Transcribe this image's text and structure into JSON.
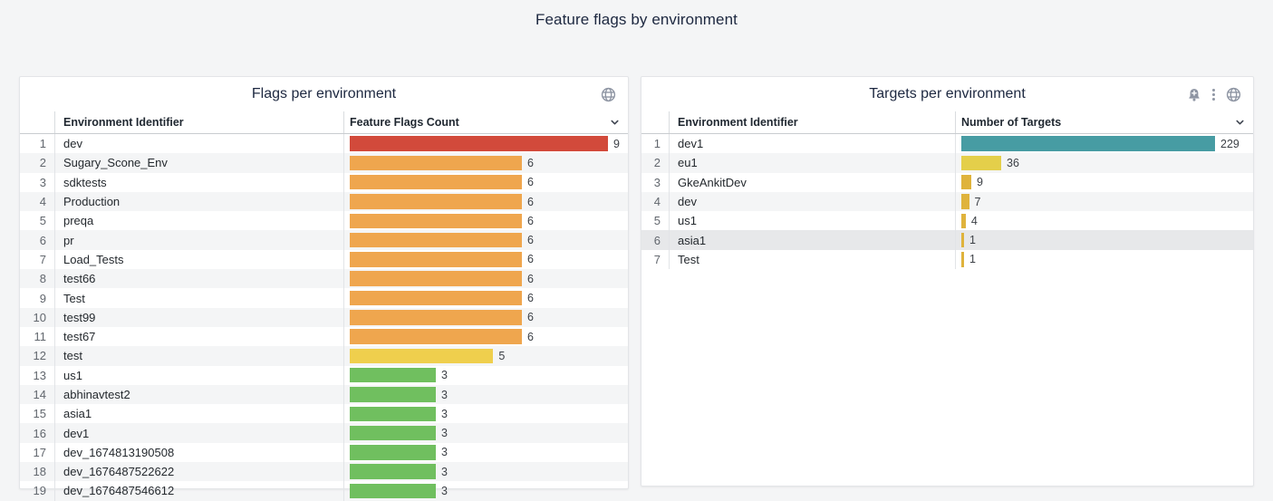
{
  "page": {
    "title": "Feature flags by environment",
    "background_color": "#f4f5f6"
  },
  "colors": {
    "red": "#d24a3b",
    "orange": "#efa64e",
    "yellow": "#efcf4d",
    "green": "#70bf5f",
    "teal": "#479ca3",
    "lime_yellow": "#e4cf4a",
    "gold": "#dfb33c",
    "icon_gray": "#8e95a3"
  },
  "panels": [
    {
      "title": "Flags per environment",
      "icons": [
        "globe-icon"
      ],
      "columns": [
        "Environment Identifier",
        "Feature Flags Count"
      ],
      "max": 9,
      "rows": [
        {
          "n": 1,
          "id": "dev",
          "value": 9,
          "color": "#d24a3b"
        },
        {
          "n": 2,
          "id": "Sugary_Scone_Env",
          "value": 6,
          "color": "#efa64e"
        },
        {
          "n": 3,
          "id": "sdktests",
          "value": 6,
          "color": "#efa64e"
        },
        {
          "n": 4,
          "id": "Production",
          "value": 6,
          "color": "#efa64e"
        },
        {
          "n": 5,
          "id": "preqa",
          "value": 6,
          "color": "#efa64e"
        },
        {
          "n": 6,
          "id": "pr",
          "value": 6,
          "color": "#efa64e"
        },
        {
          "n": 7,
          "id": "Load_Tests",
          "value": 6,
          "color": "#efa64e"
        },
        {
          "n": 8,
          "id": "test66",
          "value": 6,
          "color": "#efa64e"
        },
        {
          "n": 9,
          "id": "Test",
          "value": 6,
          "color": "#efa64e"
        },
        {
          "n": 10,
          "id": "test99",
          "value": 6,
          "color": "#efa64e"
        },
        {
          "n": 11,
          "id": "test67",
          "value": 6,
          "color": "#efa64e"
        },
        {
          "n": 12,
          "id": "test",
          "value": 5,
          "color": "#efcf4d"
        },
        {
          "n": 13,
          "id": "us1",
          "value": 3,
          "color": "#70bf5f"
        },
        {
          "n": 14,
          "id": "abhinavtest2",
          "value": 3,
          "color": "#70bf5f"
        },
        {
          "n": 15,
          "id": "asia1",
          "value": 3,
          "color": "#70bf5f"
        },
        {
          "n": 16,
          "id": "dev1",
          "value": 3,
          "color": "#70bf5f"
        },
        {
          "n": 17,
          "id": "dev_1674813190508",
          "value": 3,
          "color": "#70bf5f"
        },
        {
          "n": 18,
          "id": "dev_1676487522622",
          "value": 3,
          "color": "#70bf5f"
        },
        {
          "n": 19,
          "id": "dev_1676487546612",
          "value": 3,
          "color": "#70bf5f"
        }
      ]
    },
    {
      "title": "Targets per environment",
      "icons": [
        "bell-plus-icon",
        "kebab-menu-icon",
        "globe-icon"
      ],
      "columns": [
        "Environment Identifier",
        "Number of Targets"
      ],
      "max": 229,
      "rows": [
        {
          "n": 1,
          "id": "dev1",
          "value": 229,
          "color": "#479ca3"
        },
        {
          "n": 2,
          "id": "eu1",
          "value": 36,
          "color": "#e4cf4a"
        },
        {
          "n": 3,
          "id": "GkeAnkitDev",
          "value": 9,
          "color": "#dfb33c"
        },
        {
          "n": 4,
          "id": "dev",
          "value": 7,
          "color": "#dfb33c"
        },
        {
          "n": 5,
          "id": "us1",
          "value": 4,
          "color": "#dfb33c"
        },
        {
          "n": 6,
          "id": "asia1",
          "value": 1,
          "color": "#dfb33c",
          "highlight": true
        },
        {
          "n": 7,
          "id": "Test",
          "value": 1,
          "color": "#dfb33c"
        }
      ]
    }
  ],
  "chart_data": [
    {
      "type": "bar",
      "title": "Flags per environment",
      "orientation": "horizontal",
      "categories": [
        "dev",
        "Sugary_Scone_Env",
        "sdktests",
        "Production",
        "preqa",
        "pr",
        "Load_Tests",
        "test66",
        "Test",
        "test99",
        "test67",
        "test",
        "us1",
        "abhinavtest2",
        "asia1",
        "dev1",
        "dev_1674813190508",
        "dev_1676487522622",
        "dev_1676487546612"
      ],
      "values": [
        9,
        6,
        6,
        6,
        6,
        6,
        6,
        6,
        6,
        6,
        6,
        5,
        3,
        3,
        3,
        3,
        3,
        3,
        3
      ],
      "xlabel": "Feature Flags Count",
      "ylabel": "Environment Identifier",
      "xlim": [
        0,
        9
      ]
    },
    {
      "type": "bar",
      "title": "Targets per environment",
      "orientation": "horizontal",
      "categories": [
        "dev1",
        "eu1",
        "GkeAnkitDev",
        "dev",
        "us1",
        "asia1",
        "Test"
      ],
      "values": [
        229,
        36,
        9,
        7,
        4,
        1,
        1
      ],
      "xlabel": "Number of Targets",
      "ylabel": "Environment Identifier",
      "xlim": [
        0,
        229
      ]
    }
  ]
}
